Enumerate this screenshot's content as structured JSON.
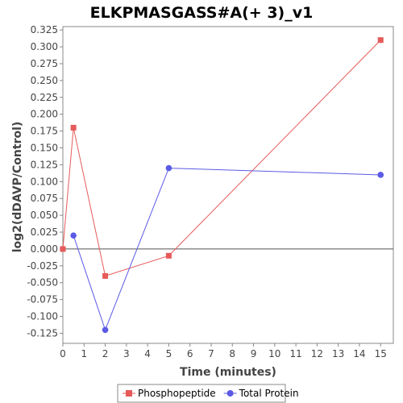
{
  "chart_data": {
    "type": "line",
    "title": "ELKPMASGASS#A(+ 3)_v1",
    "xlabel": "Time (minutes)",
    "ylabel": "log2(dDAVP/Control)",
    "xlim": [
      0,
      15.6
    ],
    "ylim": [
      -0.14,
      0.33
    ],
    "xticks": [
      0,
      1,
      2,
      3,
      4,
      5,
      6,
      7,
      8,
      9,
      10,
      11,
      12,
      13,
      14,
      15
    ],
    "yticks": [
      -0.125,
      -0.1,
      -0.075,
      -0.05,
      -0.025,
      0.0,
      0.025,
      0.05,
      0.075,
      0.1,
      0.125,
      0.15,
      0.175,
      0.2,
      0.225,
      0.25,
      0.275,
      0.3,
      0.325
    ],
    "ytick_labels": [
      "-0.125",
      "-0.100",
      "-0.075",
      "-0.050",
      "-0.025",
      "0.000",
      "0.025",
      "0.050",
      "0.075",
      "0.100",
      "0.125",
      "0.150",
      "0.175",
      "0.200",
      "0.225",
      "0.250",
      "0.275",
      "0.300",
      "0.325"
    ],
    "grid": false,
    "zero_line": true,
    "legend_position": "bottom",
    "series": [
      {
        "name": "Phosphopeptide",
        "color": "#e65a5a",
        "marker": "square",
        "x": [
          0,
          0.5,
          2,
          5,
          15
        ],
        "y": [
          0.0,
          0.18,
          -0.04,
          -0.01,
          0.31
        ]
      },
      {
        "name": "Total Protein",
        "color": "#5a5ae6",
        "marker": "circle",
        "x": [
          0.5,
          2,
          5,
          15
        ],
        "y": [
          0.02,
          -0.12,
          0.12,
          0.11
        ]
      }
    ]
  }
}
